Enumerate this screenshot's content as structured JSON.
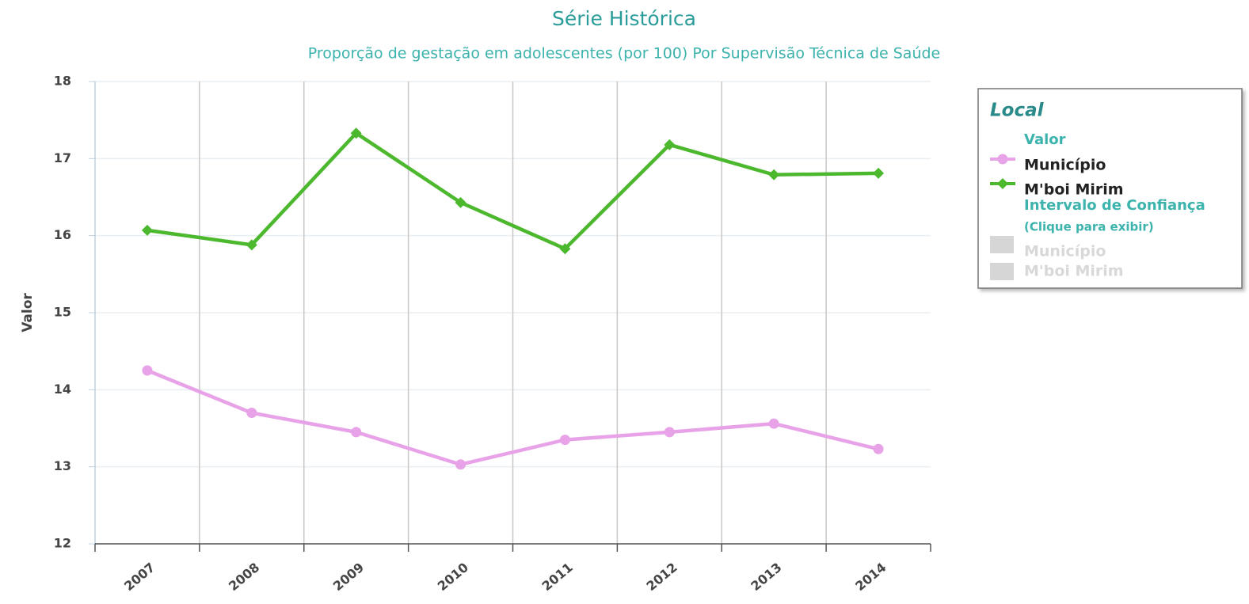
{
  "chart_data": {
    "type": "line",
    "title": "Série Histórica",
    "subtitle": "Proporção de gestação em adolescentes (por 100) Por Supervisão Técnica de Saúde",
    "y_label": "Valor",
    "categories": [
      "2007",
      "2008",
      "2009",
      "2010",
      "2011",
      "2012",
      "2013",
      "2014"
    ],
    "series": [
      {
        "name": "Município",
        "color": "#e8a2e8",
        "marker": "circle",
        "values": [
          14.25,
          13.7,
          13.45,
          13.03,
          13.35,
          13.45,
          13.56,
          13.23
        ]
      },
      {
        "name": "M'boi Mirim",
        "color": "#4cb82e",
        "marker": "diamond",
        "values": [
          16.07,
          15.88,
          17.33,
          16.43,
          15.83,
          17.18,
          16.79,
          16.81
        ]
      }
    ],
    "ylim": [
      12,
      18
    ],
    "yticks": [
      12,
      13,
      14,
      15,
      16,
      17,
      18
    ],
    "grid": true,
    "legend": {
      "position": "right",
      "title": "Local",
      "value_header": "Valor",
      "ci_header": "Intervalo de Confiança",
      "ci_hint": "(Clique para exibir)",
      "ci_items": [
        "Município",
        "M'boi Mirim"
      ]
    }
  }
}
